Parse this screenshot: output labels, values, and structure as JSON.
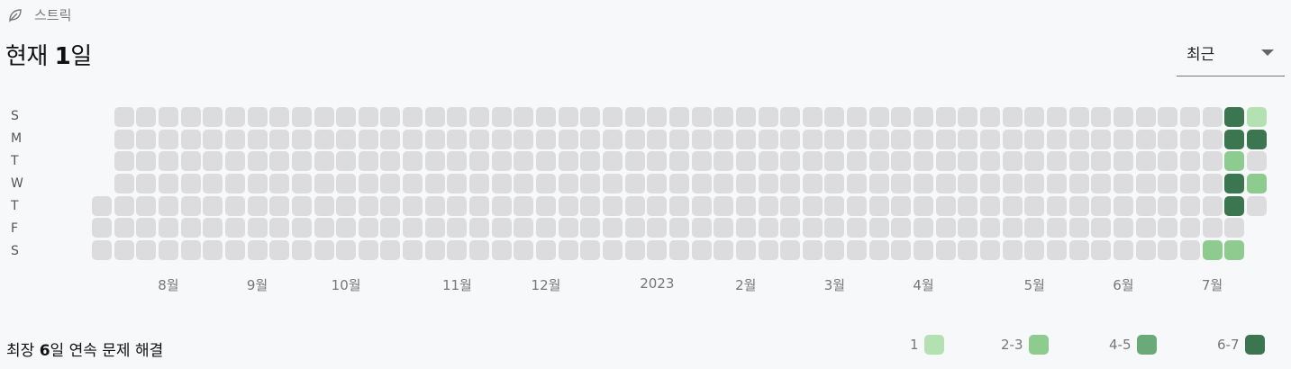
{
  "section": {
    "label": "스트릭",
    "icon": "leaf-icon"
  },
  "current_streak": {
    "prefix": "현재 ",
    "value": "1",
    "suffix": "일"
  },
  "period_select": {
    "value": "최근"
  },
  "day_labels": [
    "S",
    "M",
    "T",
    "W",
    "T",
    "F",
    "S"
  ],
  "month_labels": [
    {
      "label": "8월",
      "col": 3
    },
    {
      "label": "9월",
      "col": 7
    },
    {
      "label": "10월",
      "col": 11
    },
    {
      "label": "11월",
      "col": 16
    },
    {
      "label": "12월",
      "col": 20
    },
    {
      "label": "2023",
      "col": 25
    },
    {
      "label": "2월",
      "col": 29
    },
    {
      "label": "3월",
      "col": 33
    },
    {
      "label": "4월",
      "col": 37
    },
    {
      "label": "5월",
      "col": 42
    },
    {
      "label": "6월",
      "col": 46
    },
    {
      "label": "7월",
      "col": 50
    }
  ],
  "contributions": {
    "weeks": 53,
    "first_week_start_row": 4,
    "last_week_end_row": 4,
    "active": [
      {
        "col": 51,
        "row": 0,
        "level": 4
      },
      {
        "col": 51,
        "row": 1,
        "level": 4
      },
      {
        "col": 51,
        "row": 2,
        "level": 2
      },
      {
        "col": 51,
        "row": 3,
        "level": 4
      },
      {
        "col": 51,
        "row": 4,
        "level": 4
      },
      {
        "col": 50,
        "row": 6,
        "level": 2
      },
      {
        "col": 51,
        "row": 6,
        "level": 2
      },
      {
        "col": 52,
        "row": 0,
        "level": 1
      },
      {
        "col": 52,
        "row": 1,
        "level": 4
      },
      {
        "col": 52,
        "row": 3,
        "level": 2
      }
    ]
  },
  "longest_streak": {
    "prefix": "최장 ",
    "value": "6",
    "suffix": "일 연속 문제 해결"
  },
  "legend": [
    {
      "label": "1",
      "color": "#b4e1b1"
    },
    {
      "label": "2-3",
      "color": "#8ecb8f"
    },
    {
      "label": "4-5",
      "color": "#6aaa78"
    },
    {
      "label": "6-7",
      "color": "#3c7650"
    }
  ],
  "colors": {
    "empty": "#dcdcde"
  }
}
